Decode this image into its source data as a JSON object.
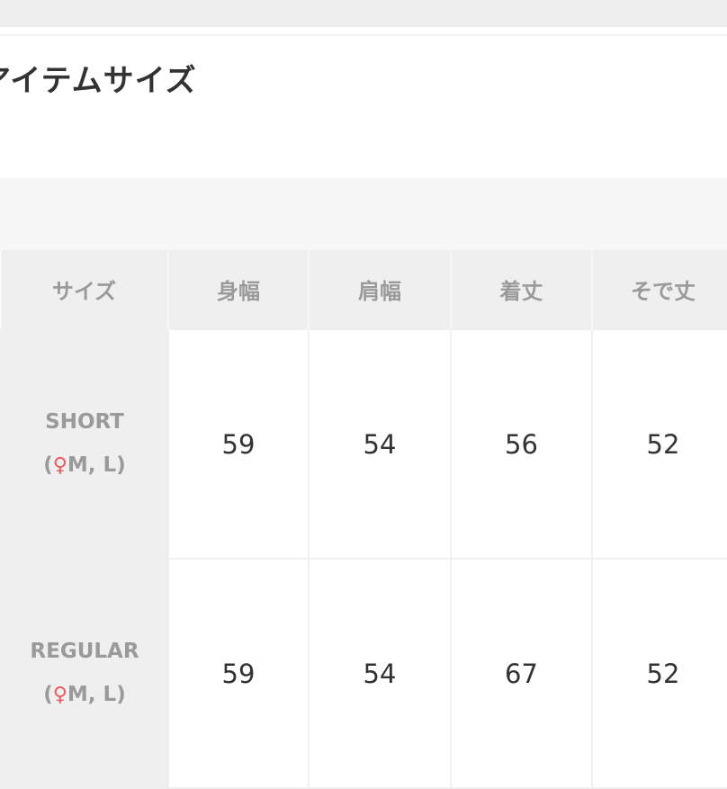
{
  "title": "アイテムサイズ",
  "table": {
    "headers": [
      "サイズ",
      "身幅",
      "肩幅",
      "着丈",
      "そで丈"
    ],
    "rows": [
      {
        "size": "SHORT",
        "fit": "M, L",
        "values": [
          "59",
          "54",
          "56",
          "52"
        ]
      },
      {
        "size": "REGULAR",
        "fit": "M, L",
        "values": [
          "59",
          "54",
          "67",
          "52"
        ]
      }
    ]
  },
  "colors": {
    "fit_icon": "#e85a60",
    "header_bg": "#efefef",
    "text": "#333333"
  },
  "icons": {
    "fit": "woman-icon"
  }
}
